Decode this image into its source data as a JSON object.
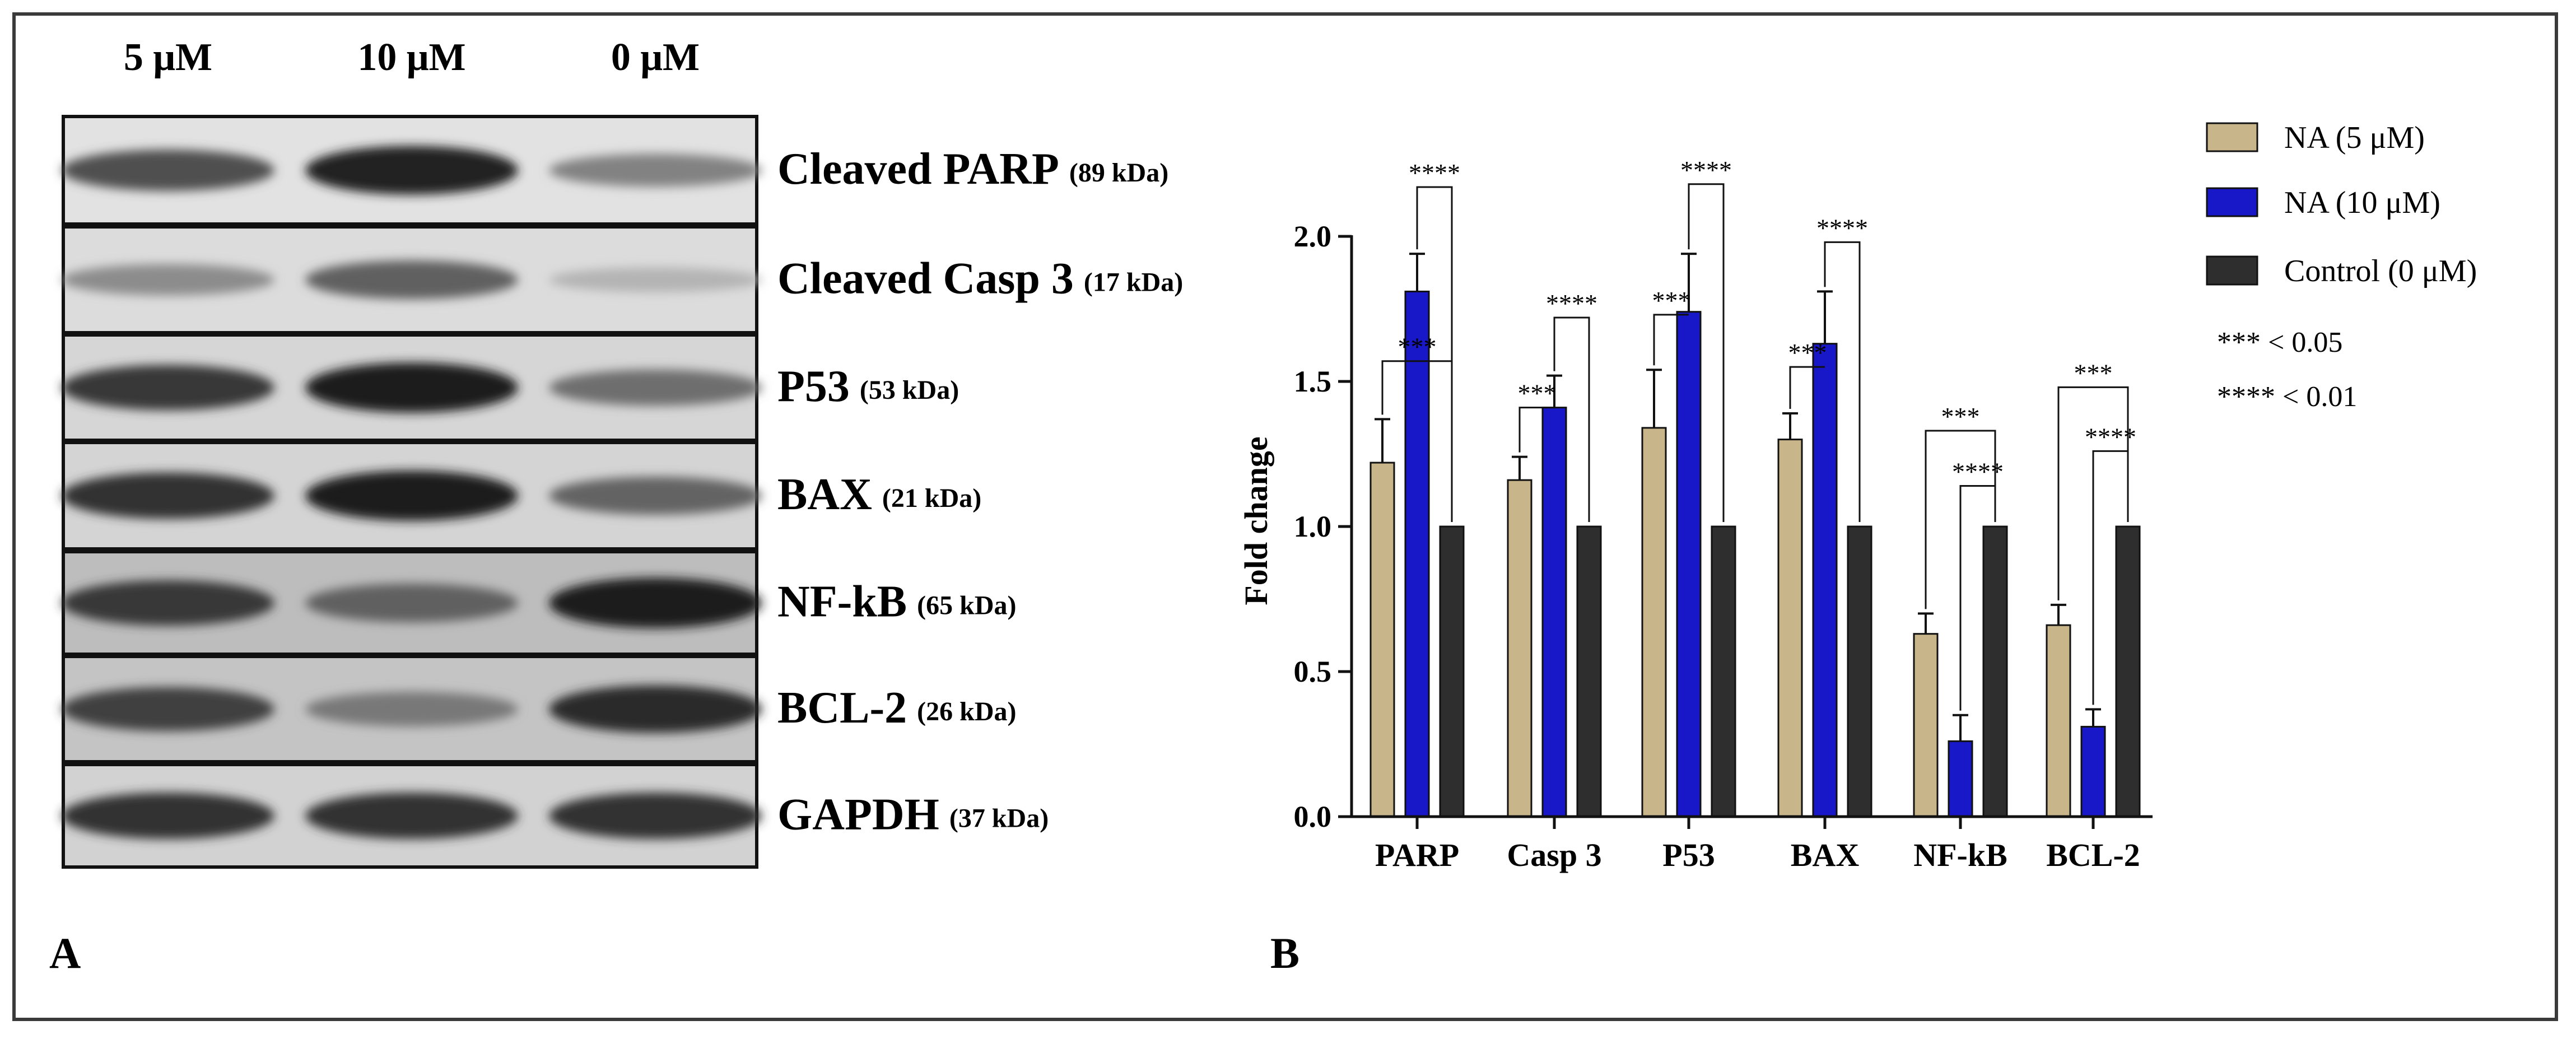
{
  "panel_a": {
    "letter": "A",
    "lanes": [
      "5 μM",
      "10 μM",
      "0 μM"
    ],
    "blots": [
      {
        "protein": "Cleaved PARP",
        "weight": "(89 kDa)",
        "band_intensity": [
          0.7,
          0.92,
          0.45
        ],
        "background": "#e2e2e2"
      },
      {
        "protein": "Cleaved Casp 3",
        "weight": "(17 kDa)",
        "band_intensity": [
          0.4,
          0.62,
          0.2
        ],
        "background": "#dcdcdc"
      },
      {
        "protein": "P53",
        "weight": "(53 kDa)",
        "band_intensity": [
          0.82,
          0.96,
          0.55
        ],
        "background": "#d6d6d6"
      },
      {
        "protein": "BAX",
        "weight": "(21 kDa)",
        "band_intensity": [
          0.85,
          0.96,
          0.6
        ],
        "background": "#d4d4d4"
      },
      {
        "protein": "NF-kB",
        "weight": "(65 kDa)",
        "band_intensity": [
          0.82,
          0.62,
          0.97
        ],
        "background": "#bdbdbd"
      },
      {
        "protein": "BCL-2",
        "weight": "(26 kDa)",
        "band_intensity": [
          0.78,
          0.5,
          0.88
        ],
        "background": "#c4c4c4"
      },
      {
        "protein": "GAPDH",
        "weight": "(37 kDa)",
        "band_intensity": [
          0.85,
          0.85,
          0.85
        ],
        "background": "#d2d2d2"
      }
    ]
  },
  "chart_data": {
    "type": "bar",
    "panel_letter": "B",
    "title": "",
    "xlabel": "",
    "ylabel": "Fold change",
    "ylim": [
      0,
      2.0
    ],
    "yticks": [
      "0.0",
      "0.5",
      "1.0",
      "1.5",
      "2.0"
    ],
    "categories": [
      "PARP",
      "Casp 3",
      "P53",
      "BAX",
      "NF-kB",
      "BCL-2"
    ],
    "series": [
      {
        "name": "NA (5 μM)",
        "color": "#c8b68a",
        "values": [
          1.22,
          1.16,
          1.34,
          1.3,
          0.63,
          0.66
        ],
        "errors": [
          0.15,
          0.08,
          0.2,
          0.09,
          0.07,
          0.07
        ]
      },
      {
        "name": "NA (10 μM)",
        "color": "#1818c8",
        "values": [
          1.81,
          1.41,
          1.74,
          1.63,
          0.26,
          0.31
        ],
        "errors": [
          0.13,
          0.11,
          0.2,
          0.18,
          0.09,
          0.06
        ]
      },
      {
        "name": "Control (0 μM)",
        "color": "#2e2e2e",
        "values": [
          1.0,
          1.0,
          1.0,
          1.0,
          1.0,
          1.0
        ],
        "errors": [
          0,
          0,
          0,
          0,
          0,
          0
        ]
      }
    ],
    "legend_position": "top-right",
    "significance_legend": [
      "*** < 0.05",
      "**** < 0.01"
    ],
    "significance_brackets": [
      {
        "category": 0,
        "from": 0,
        "to": 2,
        "label": "***",
        "height": 1.57
      },
      {
        "category": 0,
        "from": 1,
        "to": 2,
        "label": "****",
        "height": 2.17
      },
      {
        "category": 1,
        "from": 0,
        "to": 1,
        "label": "***",
        "height": 1.41
      },
      {
        "category": 1,
        "from": 1,
        "to": 2,
        "label": "****",
        "height": 1.72
      },
      {
        "category": 2,
        "from": 0,
        "to": 1,
        "label": "***",
        "height": 1.73
      },
      {
        "category": 2,
        "from": 1,
        "to": 2,
        "label": "****",
        "height": 2.18
      },
      {
        "category": 3,
        "from": 0,
        "to": 1,
        "label": "***",
        "height": 1.55
      },
      {
        "category": 3,
        "from": 1,
        "to": 2,
        "label": "****",
        "height": 1.98
      },
      {
        "category": 4,
        "from": 0,
        "to": 2,
        "label": "***",
        "height": 1.33
      },
      {
        "category": 4,
        "from": 1,
        "to": 2,
        "label": "****",
        "height": 1.14
      },
      {
        "category": 5,
        "from": 0,
        "to": 2,
        "label": "***",
        "height": 1.48
      },
      {
        "category": 5,
        "from": 1,
        "to": 2,
        "label": "****",
        "height": 1.26
      }
    ]
  }
}
